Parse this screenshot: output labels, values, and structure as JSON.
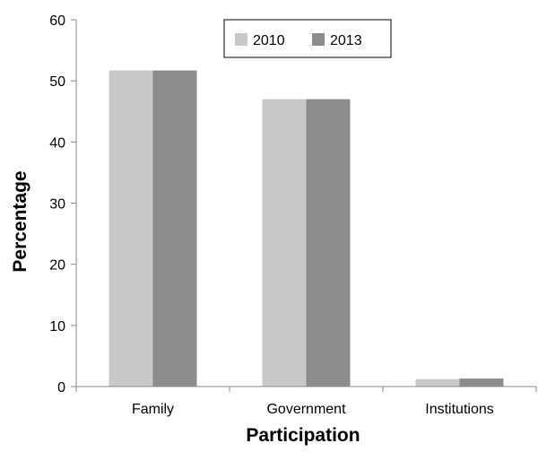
{
  "chart_data": {
    "type": "bar",
    "title": "",
    "xlabel": "Participation",
    "ylabel": "Percentage",
    "categories": [
      "Family",
      "Government",
      "Institutions"
    ],
    "series": [
      {
        "name": "2010",
        "values": [
          51.7,
          47.0,
          1.2
        ],
        "color": "#c8c8c8"
      },
      {
        "name": "2013",
        "values": [
          51.7,
          47.0,
          1.3
        ],
        "color": "#8c8c8c"
      }
    ],
    "ylim": [
      0,
      60
    ],
    "yticks": [
      0,
      10,
      20,
      30,
      40,
      50,
      60
    ],
    "grid": false,
    "legend": {
      "placement": "top-center",
      "entries": [
        "2010",
        "2013"
      ]
    }
  }
}
